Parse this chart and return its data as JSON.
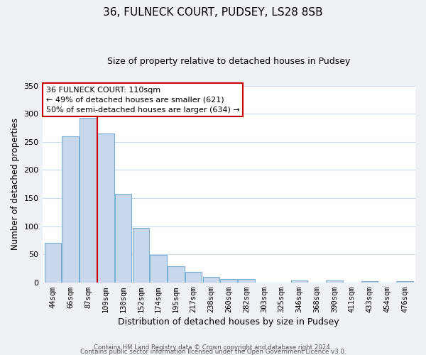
{
  "title": "36, FULNECK COURT, PUDSEY, LS28 8SB",
  "subtitle": "Size of property relative to detached houses in Pudsey",
  "xlabel": "Distribution of detached houses by size in Pudsey",
  "ylabel": "Number of detached properties",
  "bar_labels": [
    "44sqm",
    "66sqm",
    "87sqm",
    "109sqm",
    "130sqm",
    "152sqm",
    "174sqm",
    "195sqm",
    "217sqm",
    "238sqm",
    "260sqm",
    "282sqm",
    "303sqm",
    "325sqm",
    "346sqm",
    "368sqm",
    "390sqm",
    "411sqm",
    "433sqm",
    "454sqm",
    "476sqm"
  ],
  "bar_heights": [
    70,
    260,
    293,
    265,
    157,
    97,
    49,
    29,
    19,
    10,
    6,
    6,
    0,
    0,
    4,
    0,
    3,
    0,
    2,
    0,
    2
  ],
  "bar_color": "#c8d8ea",
  "bar_edge_color": "#7bafd4",
  "highlight_bar_index": 3,
  "vline_color": "#cc0000",
  "ylim": [
    0,
    350
  ],
  "yticks": [
    0,
    50,
    100,
    150,
    200,
    250,
    300,
    350
  ],
  "annotation_title": "36 FULNECK COURT: 110sqm",
  "annotation_line1": "← 49% of detached houses are smaller (621)",
  "annotation_line2": "50% of semi-detached houses are larger (634) →",
  "annotation_box_color": "#ffffff",
  "annotation_box_edge": "#cc0000",
  "footer_line1": "Contains HM Land Registry data © Crown copyright and database right 2024.",
  "footer_line2": "Contains public sector information licensed under the Open Government Licence v3.0.",
  "background_color": "#eef2f6",
  "plot_background_color": "#ffffff",
  "grid_color": "#c8d8ea"
}
